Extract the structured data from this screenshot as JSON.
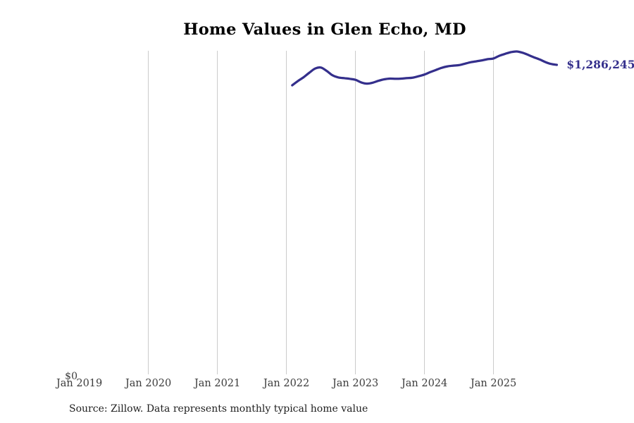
{
  "title": "Home Values in Glen Echo, MD",
  "annotations": {
    "end_value_label": "$1,286,245",
    "y_zero_label": "$0"
  },
  "source_note": "Source: Zillow. Data represents monthly typical home value",
  "colors": {
    "background": "#ffffff",
    "title": "#000000",
    "line": "#342f8c",
    "end_label": "#342f8c",
    "grid": "#cbcbcb",
    "axis_text": "#3b3b3b"
  },
  "x_axis": {
    "ticks": [
      {
        "label": "Jan 2019",
        "gridline": false
      },
      {
        "label": "Jan 2020",
        "gridline": true
      },
      {
        "label": "Jan 2021",
        "gridline": true
      },
      {
        "label": "Jan 2022",
        "gridline": true
      },
      {
        "label": "Jan 2023",
        "gridline": true
      },
      {
        "label": "Jan 2024",
        "gridline": true
      },
      {
        "label": "Jan 2025",
        "gridline": true
      }
    ]
  },
  "chart_data": {
    "type": "line",
    "title": "Home Values in Glen Echo, MD",
    "unit": "USD",
    "grid": "vertical",
    "legend": "none",
    "xlim": [
      "Jan 2019",
      "Jan 2026"
    ],
    "ylim": [
      0,
      1345000
    ],
    "y_tick_labels": [
      "$0"
    ],
    "x_tick_labels": [
      "Jan 2019",
      "Jan 2020",
      "Jan 2021",
      "Jan 2022",
      "Jan 2023",
      "Jan 2024",
      "Jan 2025"
    ],
    "end_value_label": "$1,286,245",
    "series": [
      {
        "name": "Monthly typical home value",
        "x": [
          "Feb 2022",
          "Mar 2022",
          "Apr 2022",
          "May 2022",
          "Jun 2022",
          "Jul 2022",
          "Aug 2022",
          "Sep 2022",
          "Oct 2022",
          "Nov 2022",
          "Dec 2022",
          "Jan 2023",
          "Feb 2023",
          "Mar 2023",
          "Apr 2023",
          "May 2023",
          "Jun 2023",
          "Jul 2023",
          "Aug 2023",
          "Sep 2023",
          "Oct 2023",
          "Nov 2023",
          "Dec 2023",
          "Jan 2024",
          "Feb 2024",
          "Mar 2024",
          "Apr 2024",
          "May 2024",
          "Jun 2024",
          "Jul 2024",
          "Aug 2024",
          "Sep 2024",
          "Oct 2024",
          "Nov 2024",
          "Dec 2024",
          "Jan 2025",
          "Feb 2025",
          "Mar 2025",
          "Apr 2025",
          "May 2025",
          "Jun 2025",
          "Jul 2025",
          "Aug 2025",
          "Sep 2025",
          "Oct 2025",
          "Nov 2025",
          "Dec 2025"
        ],
        "values": [
          1201000,
          1219000,
          1235000,
          1254000,
          1271000,
          1275000,
          1261000,
          1243000,
          1234000,
          1231000,
          1228000,
          1224000,
          1213000,
          1208000,
          1212000,
          1220000,
          1226000,
          1229000,
          1228000,
          1229000,
          1231000,
          1233000,
          1239000,
          1246000,
          1256000,
          1265000,
          1274000,
          1280000,
          1283000,
          1285000,
          1291000,
          1297000,
          1301000,
          1305000,
          1310000,
          1313000,
          1324000,
          1332000,
          1339000,
          1342000,
          1337000,
          1328000,
          1318000,
          1309000,
          1298000,
          1290000,
          1286245
        ]
      }
    ]
  }
}
